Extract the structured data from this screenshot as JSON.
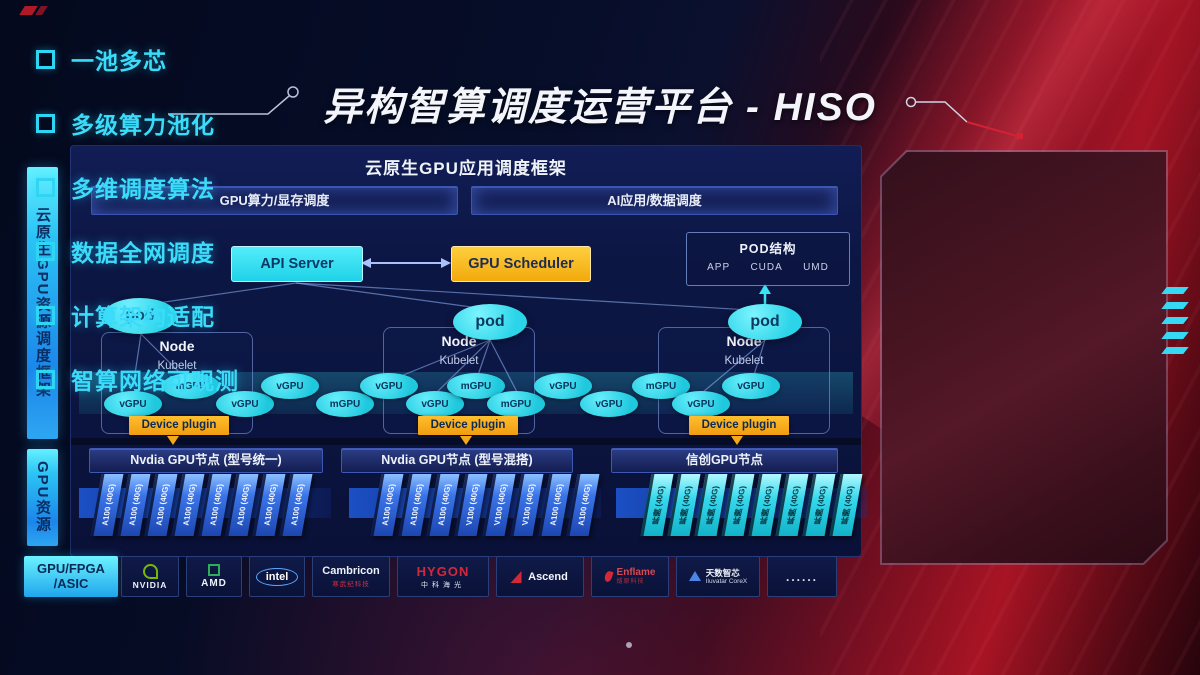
{
  "title": "异构智算调度运营平台 - HISO",
  "sidebar": {
    "framework_label": "云原生GPU资源调度框架",
    "resource_label": "GPU资源",
    "hardware_label_line1": "GPU/FPGA",
    "hardware_label_line2": "/ASIC"
  },
  "framework": {
    "title": "云原生GPU应用调度框架",
    "left_bar": "GPU算力/显存调度",
    "right_bar": "AI应用/数据调度",
    "api_server": "API Server",
    "gpu_scheduler": "GPU Scheduler",
    "pod_struct": {
      "title": "POD结构",
      "items": [
        "APP",
        "CUDA",
        "UMD"
      ]
    },
    "pod_label": "pod",
    "node_label": "Node",
    "kubelet_label": "Kubelet",
    "device_plugin_label": "Device plugin",
    "gpu_chips": [
      "vGPU",
      "mGPU",
      "vGPU",
      "vGPU",
      "mGPU",
      "vGPU",
      "vGPU",
      "mGPU",
      "mGPU",
      "vGPU",
      "vGPU",
      "mGPU",
      "vGPU",
      "vGPU"
    ]
  },
  "gpu_section": {
    "groups": [
      {
        "header": "Nvdia GPU节点 (型号统一)",
        "cards": [
          "A100 (40G)",
          "A100 (40G)",
          "A100 (40G)",
          "A100 (40G)",
          "A100 (40G)",
          "A100 (40G)",
          "A100 (40G)",
          "A100 (40G)"
        ]
      },
      {
        "header": "Nvdia GPU节点 (型号混搭)",
        "cards": [
          "A100 (40G)",
          "A100 (40G)",
          "A100 (40G)",
          "V100 (40G)",
          "V100 (40G)",
          "V100 (40G)",
          "A100 (40G)",
          "A100 (40G)"
        ]
      },
      {
        "header": "信创GPU节点",
        "cards": [
          "昇腾 (40G)",
          "昇腾 (40G)",
          "昇腾 (40G)",
          "昇腾 (40G)",
          "昇腾 (40G)",
          "昇腾 (40G)",
          "昇腾 (40G)",
          "昇腾 (40G)"
        ]
      }
    ]
  },
  "vendors": [
    {
      "name": "NVIDIA"
    },
    {
      "name": "AMD"
    },
    {
      "name": "intel"
    },
    {
      "name": "Cambricon",
      "sub": "寒武纪科技"
    },
    {
      "name": "HYGON",
      "sub": "中科海光"
    },
    {
      "name": "Ascend"
    },
    {
      "name": "Enflame",
      "sub": "燧原科技"
    },
    {
      "name": "天数智芯",
      "sub": "Iluvatar CoreX"
    },
    {
      "name": "......"
    }
  ],
  "features": [
    "一池多芯",
    "多级算力池化",
    "多维调度算法",
    "数据全网调度",
    "计算架构适配",
    "智算网络可观测"
  ],
  "colors": {
    "accent_cyan": "#35e0f2",
    "accent_yellow": "#f6b51e",
    "panel_blue": "#0c1544",
    "panel_red": "#451020"
  }
}
